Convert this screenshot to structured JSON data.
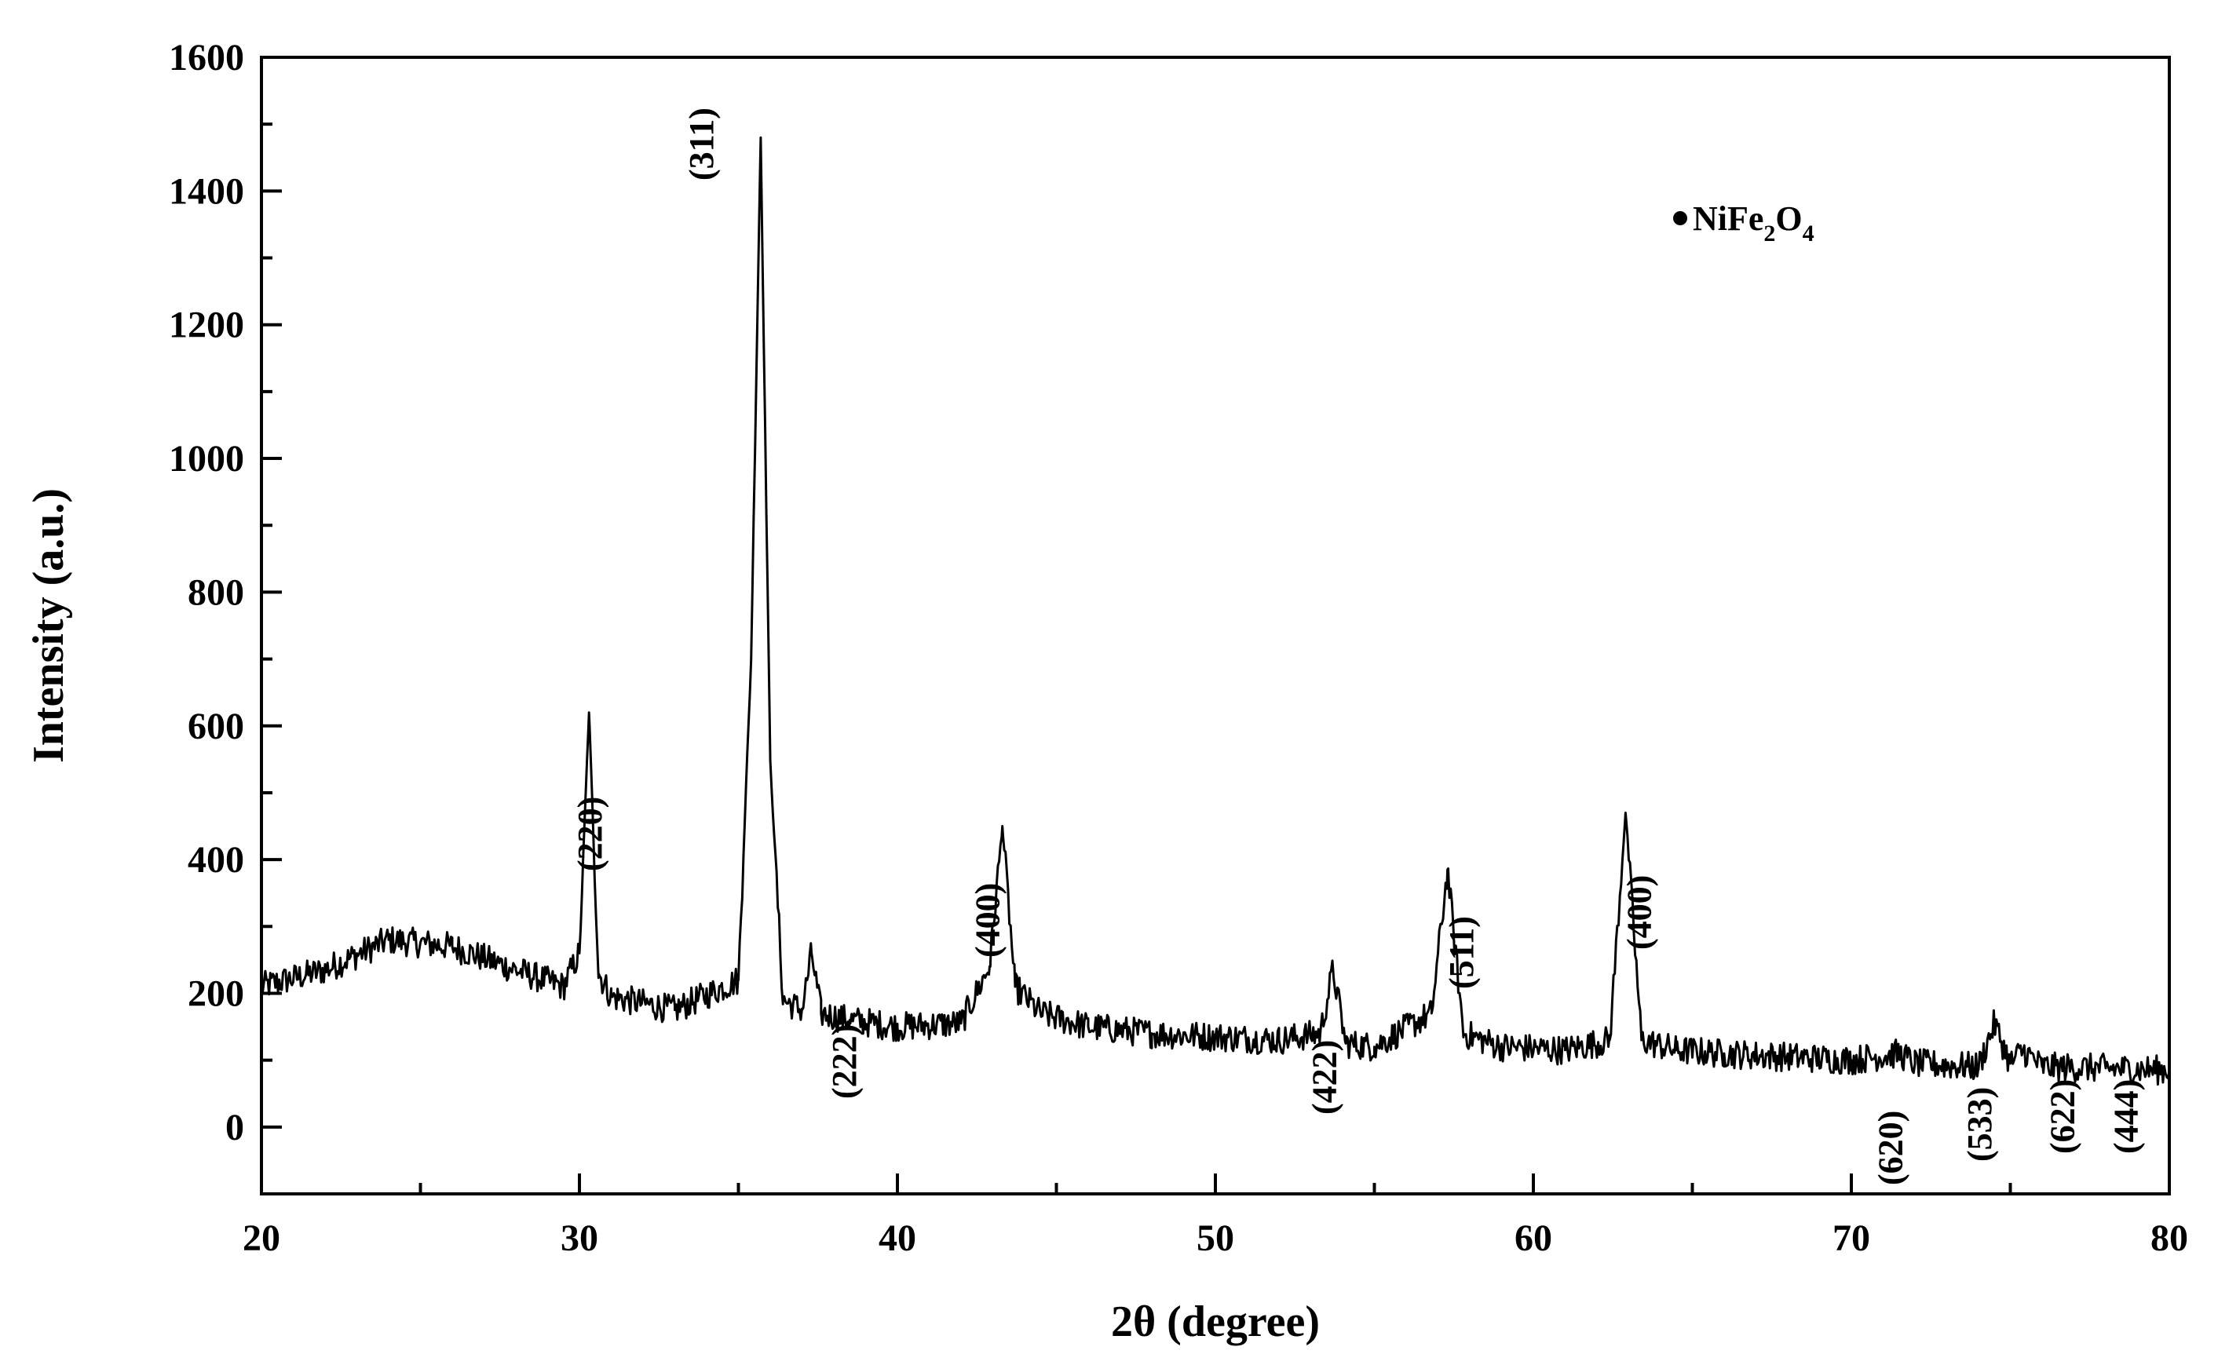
{
  "chart_data": {
    "type": "line",
    "xlabel": "2θ (degree)",
    "ylabel": "Intensity (a.u.)",
    "xlim": [
      20,
      80
    ],
    "ylim": [
      -100,
      1600
    ],
    "x_ticks": [
      20,
      30,
      40,
      50,
      60,
      70,
      80
    ],
    "y_ticks": [
      0,
      200,
      400,
      600,
      800,
      1000,
      1200,
      1400,
      1600
    ],
    "grid": false,
    "legend": {
      "marker": "•",
      "text": "NiFe2O4",
      "placement": "top-right"
    },
    "series": [
      {
        "color": "#000000",
        "x": [
          20,
          22,
          24,
          26,
          28,
          29.5,
          30.0,
          30.3,
          30.6,
          31,
          33,
          35.0,
          35.4,
          35.7,
          36.0,
          36.4,
          37.0,
          37.3,
          37.6,
          38.5,
          40,
          42,
          42.9,
          43.3,
          43.7,
          44.5,
          46,
          48,
          50,
          52,
          53.3,
          53.7,
          54.1,
          55,
          56.8,
          57.3,
          57.8,
          59,
          61,
          62.4,
          62.9,
          63.4,
          64.5,
          66,
          68,
          70,
          71.5,
          72,
          74,
          74.5,
          75,
          75.4,
          76,
          78,
          80
        ],
        "y": [
          210,
          235,
          280,
          270,
          235,
          210,
          260,
          620,
          230,
          195,
          175,
          220,
          700,
          1480,
          550,
          190,
          175,
          260,
          170,
          160,
          150,
          155,
          240,
          450,
          210,
          170,
          150,
          140,
          135,
          130,
          140,
          235,
          125,
          120,
          170,
          385,
          140,
          120,
          115,
          130,
          470,
          130,
          115,
          110,
          105,
          100,
          110,
          95,
          90,
          155,
          95,
          115,
          90,
          88,
          85
        ]
      }
    ],
    "annotations": [
      {
        "text": "(220)",
        "x": 30.3
      },
      {
        "text": "(311)",
        "x": 33.8
      },
      {
        "text": "(222)",
        "x": 38.3
      },
      {
        "text": "(400)",
        "x": 42.8
      },
      {
        "text": "(422)",
        "x": 53.4
      },
      {
        "text": "(511)",
        "x": 57.7
      },
      {
        "text": "(400)",
        "x": 63.3
      },
      {
        "text": "(620)",
        "x": 71.2
      },
      {
        "text": "(533)",
        "x": 74.0
      },
      {
        "text": "(622)",
        "x": 76.6
      },
      {
        "text": "(444)",
        "x": 78.6
      }
    ]
  }
}
